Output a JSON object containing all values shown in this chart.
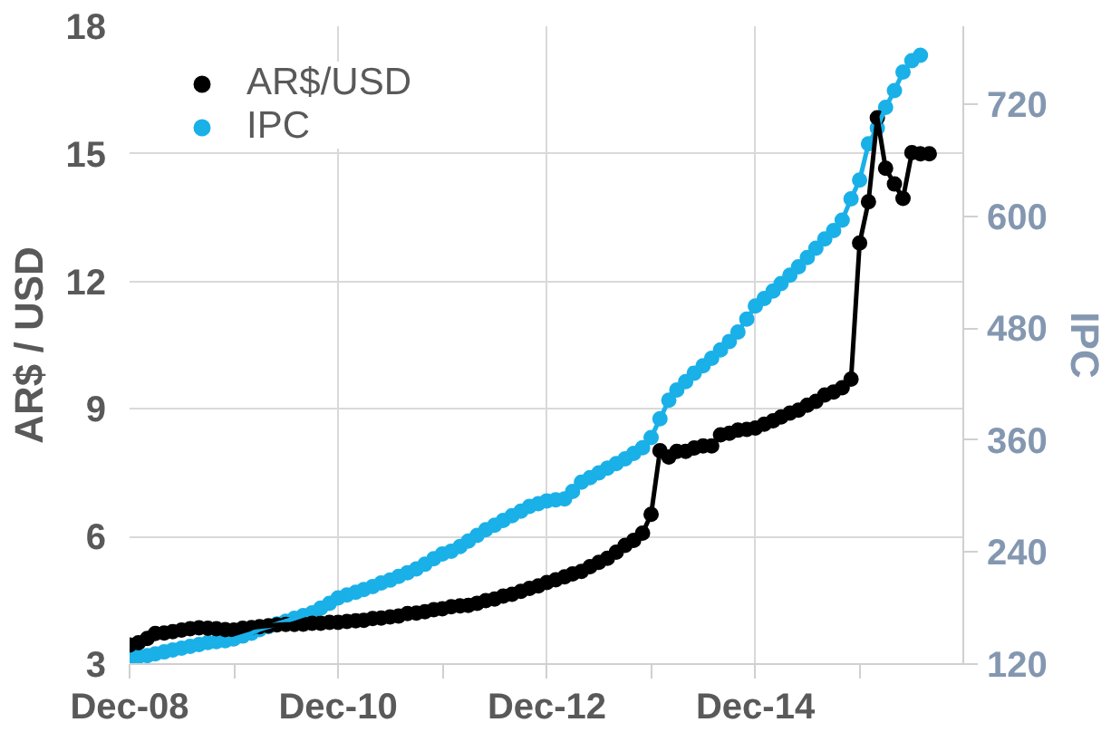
{
  "chart_data": {
    "type": "line",
    "ylabel": "AR$ / USD",
    "y2label": "IPC",
    "marker": "circle",
    "legend": "top left",
    "grid": true,
    "xlim": [
      "2008-12-01",
      "2016-11-28"
    ],
    "xticks": [
      {
        "value": "2008-12",
        "label": "Dec-08"
      },
      {
        "value": "2009-12",
        "label": null
      },
      {
        "value": "2010-12",
        "label": "Dec-10"
      },
      {
        "value": "2011-12",
        "label": null
      },
      {
        "value": "2012-12",
        "label": "Dec-12"
      },
      {
        "value": "2013-12",
        "label": null
      },
      {
        "value": "2014-12",
        "label": "Dec-14"
      },
      {
        "value": "2015-12",
        "label": null
      }
    ],
    "ylim": [
      3,
      18
    ],
    "yticks": [
      3,
      6,
      9,
      12,
      15,
      18
    ],
    "y2lim": [
      120,
      804
    ],
    "y2ticks": [
      120,
      240,
      360,
      480,
      600,
      720
    ],
    "x": [
      "2008-12",
      "2009-01",
      "2009-02",
      "2009-03",
      "2009-04",
      "2009-05",
      "2009-06",
      "2009-07",
      "2009-08",
      "2009-09",
      "2009-10",
      "2009-11",
      "2009-12",
      "2010-01",
      "2010-02",
      "2010-03",
      "2010-04",
      "2010-05",
      "2010-06",
      "2010-07",
      "2010-08",
      "2010-09",
      "2010-10",
      "2010-11",
      "2010-12",
      "2011-01",
      "2011-02",
      "2011-03",
      "2011-04",
      "2011-05",
      "2011-06",
      "2011-07",
      "2011-08",
      "2011-09",
      "2011-10",
      "2011-11",
      "2011-12",
      "2012-01",
      "2012-02",
      "2012-03",
      "2012-04",
      "2012-05",
      "2012-06",
      "2012-07",
      "2012-08",
      "2012-09",
      "2012-10",
      "2012-11",
      "2012-12",
      "2013-01",
      "2013-02",
      "2013-03",
      "2013-04",
      "2013-05",
      "2013-06",
      "2013-07",
      "2013-08",
      "2013-09",
      "2013-10",
      "2013-11",
      "2013-12",
      "2014-01",
      "2014-02",
      "2014-03",
      "2014-04",
      "2014-05",
      "2014-06",
      "2014-07",
      "2014-08",
      "2014-09",
      "2014-10",
      "2014-11",
      "2014-12",
      "2015-01",
      "2015-02",
      "2015-03",
      "2015-04",
      "2015-05",
      "2015-06",
      "2015-07",
      "2015-08",
      "2015-09",
      "2015-10",
      "2015-11",
      "2015-12",
      "2016-01",
      "2016-02",
      "2016-03",
      "2016-04",
      "2016-05",
      "2016-06",
      "2016-07",
      "2016-08"
    ],
    "series": [
      {
        "name": "AR$/USD",
        "color": "#000000",
        "values": [
          3.45,
          3.5,
          3.6,
          3.72,
          3.73,
          3.76,
          3.8,
          3.83,
          3.85,
          3.84,
          3.83,
          3.81,
          3.8,
          3.84,
          3.86,
          3.88,
          3.9,
          3.92,
          3.93,
          3.93,
          3.94,
          3.96,
          3.96,
          3.98,
          3.98,
          4.0,
          4.02,
          4.03,
          4.07,
          4.08,
          4.11,
          4.13,
          4.19,
          4.2,
          4.23,
          4.28,
          4.3,
          4.35,
          4.37,
          4.38,
          4.43,
          4.49,
          4.53,
          4.6,
          4.64,
          4.71,
          4.78,
          4.84,
          4.92,
          4.98,
          5.05,
          5.12,
          5.18,
          5.29,
          5.39,
          5.49,
          5.63,
          5.79,
          5.91,
          6.08,
          6.52,
          8.02,
          7.87,
          8.0,
          8.0,
          8.08,
          8.13,
          8.13,
          8.39,
          8.43,
          8.5,
          8.52,
          8.55,
          8.64,
          8.72,
          8.81,
          8.9,
          8.97,
          9.09,
          9.18,
          9.33,
          9.4,
          9.5,
          9.7,
          12.9,
          13.87,
          15.85,
          14.66,
          14.29,
          13.95,
          15.03,
          15.0,
          15.0
        ]
      },
      {
        "name": "IPC",
        "color": "#1ab0e8",
        "axis": "y2",
        "x": [
          "2008-12",
          "2009-01",
          "2009-02",
          "2009-03",
          "2009-04",
          "2009-05",
          "2009-06",
          "2009-07",
          "2009-08",
          "2009-09",
          "2009-10",
          "2009-11",
          "2009-12",
          "2010-01",
          "2010-02",
          "2010-03",
          "2010-04",
          "2010-05",
          "2010-06",
          "2010-07",
          "2010-08",
          "2010-09",
          "2010-10",
          "2010-11",
          "2010-12",
          "2011-01",
          "2011-02",
          "2011-03",
          "2011-04",
          "2011-05",
          "2011-06",
          "2011-07",
          "2011-08",
          "2011-09",
          "2011-10",
          "2011-11",
          "2011-12",
          "2012-01",
          "2012-02",
          "2012-03",
          "2012-04",
          "2012-05",
          "2012-06",
          "2012-07",
          "2012-08",
          "2012-09",
          "2012-10",
          "2012-11",
          "2012-12",
          "2013-01",
          "2013-02",
          "2013-03",
          "2013-04",
          "2013-05",
          "2013-06",
          "2013-07",
          "2013-08",
          "2013-09",
          "2013-10",
          "2013-11",
          "2013-12",
          "2014-01",
          "2014-02",
          "2014-03",
          "2014-04",
          "2014-05",
          "2014-06",
          "2014-07",
          "2014-08",
          "2014-09",
          "2014-10",
          "2014-11",
          "2014-12",
          "2015-01",
          "2015-02",
          "2015-03",
          "2015-04",
          "2015-05",
          "2015-06",
          "2015-07",
          "2015-08",
          "2015-09",
          "2015-10",
          "2015-11",
          "2015-12",
          "2016-01",
          "2016-02",
          "2016-03",
          "2016-04",
          "2016-05",
          "2016-06",
          "2016-07"
        ],
        "values": [
          127,
          128,
          129,
          131,
          133,
          135,
          137,
          139,
          141,
          143,
          144,
          145,
          147,
          150,
          153,
          157,
          160,
          163,
          166,
          169,
          172,
          175,
          180,
          185,
          191,
          194,
          197,
          200,
          203,
          207,
          210,
          214,
          218,
          222,
          227,
          233,
          238,
          241,
          246,
          252,
          258,
          264,
          269,
          274,
          279,
          284,
          289,
          292,
          295,
          296,
          297,
          305,
          315,
          320,
          325,
          330,
          335,
          340,
          346,
          352,
          363,
          383,
          403,
          414,
          423,
          432,
          440,
          448,
          457,
          466,
          476,
          490,
          504,
          512,
          520,
          528,
          537,
          546,
          556,
          566,
          576,
          585,
          596,
          619,
          639,
          678,
          695,
          717,
          735,
          755,
          767,
          773
        ]
      }
    ]
  }
}
